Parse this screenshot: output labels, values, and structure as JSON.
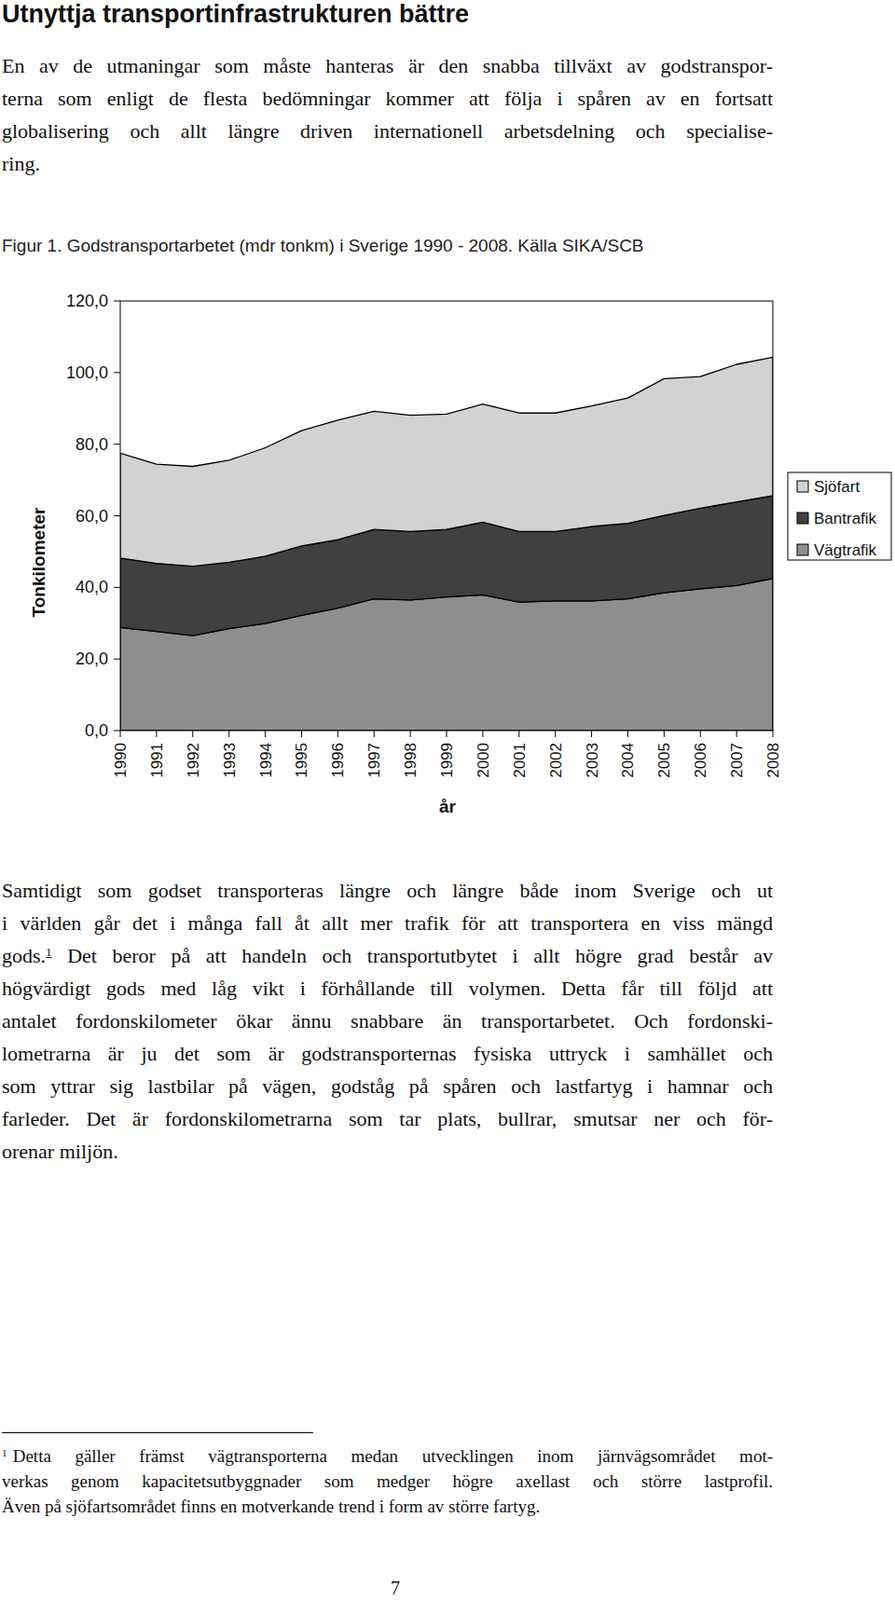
{
  "heading": "Utnyttja transportinfrastrukturen bättre",
  "intro": {
    "lines": [
      "En av de utmaningar som måste hanteras är den snabba tillväxt av godstranspor-",
      "terna som enligt de flesta bedömningar kommer att följa i spåren av en fortsatt",
      "globalisering och allt längre driven internationell arbetsdelning och specialise-",
      "ring."
    ]
  },
  "chart_data": {
    "type": "area",
    "stacked": true,
    "title": "Figur 1. Godstransportarbetet (mdr tonkm) i Sverige 1990 - 2008. Källa SIKA/SCB",
    "x_label": "år",
    "y_label": "Tonkilometer",
    "legend": "right",
    "categories": [
      "1990",
      "1991",
      "1992",
      "1993",
      "1994",
      "1995",
      "1996",
      "1997",
      "1998",
      "1999",
      "2000",
      "2001",
      "2002",
      "2003",
      "2004",
      "2005",
      "2006",
      "2007",
      "2008"
    ],
    "series": [
      {
        "name": "Vägtrafik",
        "color": "#8e8e8e",
        "values": [
          28.8,
          27.7,
          26.5,
          28.5,
          29.9,
          32.2,
          34.2,
          36.8,
          36.5,
          37.3,
          37.9,
          35.9,
          36.2,
          36.2,
          36.8,
          38.5,
          39.6,
          40.5,
          42.5
        ]
      },
      {
        "name": "Bantrafik",
        "color": "#404040",
        "values": [
          19.4,
          19.0,
          19.4,
          18.5,
          18.8,
          19.4,
          19.1,
          19.4,
          19.1,
          18.9,
          20.3,
          19.7,
          19.4,
          20.8,
          21.1,
          21.6,
          22.5,
          23.4,
          23.1
        ]
      },
      {
        "name": "Sjöfart",
        "color": "#d2d2d2",
        "values": [
          29.3,
          27.7,
          27.9,
          28.5,
          30.3,
          32.2,
          33.4,
          33.0,
          32.5,
          32.2,
          33.0,
          33.1,
          33.1,
          33.7,
          35.0,
          38.2,
          36.8,
          38.4,
          38.7
        ]
      }
    ],
    "ylim": [
      0,
      120
    ],
    "yticks": [
      {
        "value": 0,
        "label": "0,0"
      },
      {
        "value": 20,
        "label": "20,0"
      },
      {
        "value": 40,
        "label": "40,0"
      },
      {
        "value": 60,
        "label": "60,0"
      },
      {
        "value": 80,
        "label": "80,0"
      },
      {
        "value": 100,
        "label": "100,0"
      },
      {
        "value": 120,
        "label": "120,0"
      }
    ],
    "grid": false
  },
  "body": {
    "lines_before": [
      "Samtidigt som godset transporteras längre och längre både inom Sverige och ut",
      "i världen går det i många fall åt allt mer trafik för att transportera en viss mängd"
    ],
    "ref_line": {
      "before": "gods.",
      "ref": "1",
      "after": " Det beror på att handeln och transportutbytet i allt högre grad består av"
    },
    "lines_after": [
      "högvärdigt gods med låg vikt i förhållande till volymen. Detta får till följd att",
      "antalet fordonskilometer ökar ännu snabbare än transportarbetet. Och fordonski-",
      "lometrarna är ju det som är godstransporternas fysiska uttryck i samhället och",
      "som yttrar sig lastbilar på vägen, godståg på spåren och lastfartyg i hamnar och",
      "farleder. Det är fordonskilometrarna som tar plats, bullrar, smutsar ner och för-",
      "orenar miljön."
    ]
  },
  "footnote": {
    "number": "1",
    "lines": [
      "Detta gäller främst vägtransporterna medan utvecklingen inom järnvägsområdet mot-",
      "verkas genom kapacitetsutbyggnader som medger högre axellast och större lastprofil.",
      "Även på sjöfartsområdet finns en motverkande trend i form av större fartyg."
    ]
  },
  "page_number": "7"
}
